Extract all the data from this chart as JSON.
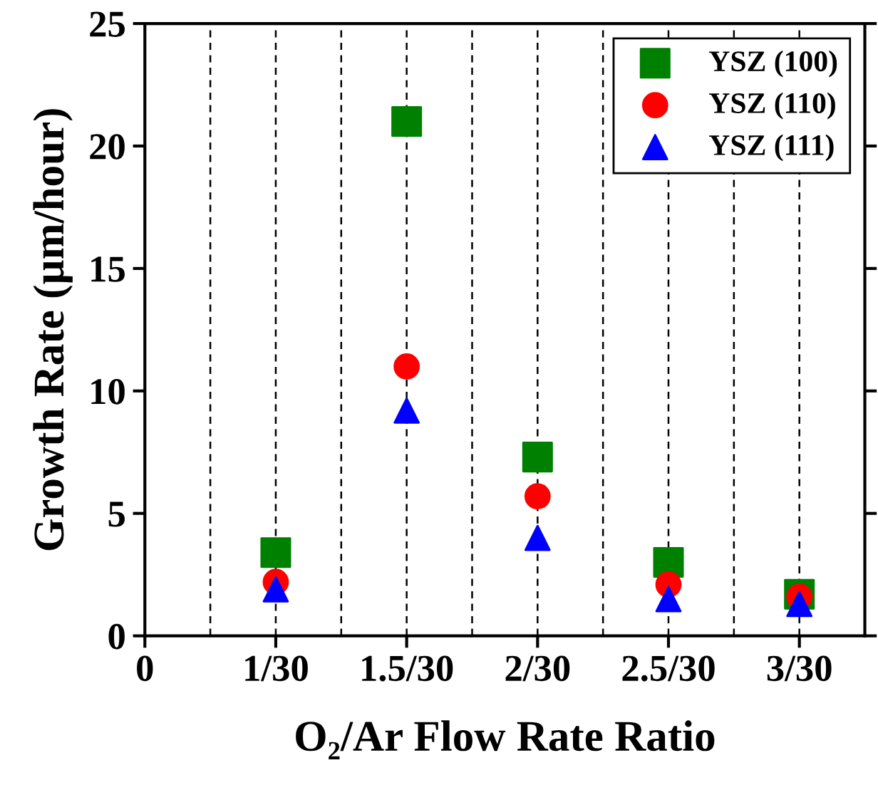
{
  "chart_data": {
    "type": "scatter",
    "xlabel": "O₂/Ar Flow Rate Ratio",
    "ylabel": "Growth Rate (µm/hour)",
    "categories": [
      "0",
      "1/30",
      "1.5/30",
      "2/30",
      "2.5/30",
      "3/30"
    ],
    "series": [
      {
        "name": "YSZ (100)",
        "color": "#008000",
        "marker": "square",
        "values": [
          null,
          3.4,
          21.0,
          7.3,
          3.0,
          1.7
        ]
      },
      {
        "name": "YSZ (110)",
        "color": "#ff0000",
        "marker": "circle",
        "values": [
          null,
          2.2,
          11.0,
          5.7,
          2.1,
          1.6
        ]
      },
      {
        "name": "YSZ (111)",
        "color": "#0000ff",
        "marker": "triangle",
        "values": [
          null,
          1.9,
          9.2,
          4.0,
          1.5,
          1.3
        ]
      }
    ],
    "ylim": [
      0,
      25
    ],
    "yticks": [
      0,
      5,
      10,
      15,
      20,
      25
    ],
    "grid": "x",
    "legend": "top right"
  }
}
